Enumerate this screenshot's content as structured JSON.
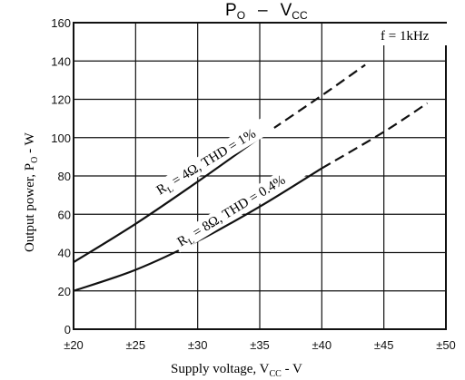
{
  "chart_data": {
    "type": "line",
    "title": {
      "main": "P",
      "main_sub": "O",
      "dash": "–",
      "vcc": "V",
      "vcc_sub": "CC"
    },
    "xlabel": {
      "pre": "Supply voltage, V",
      "sub": "CC",
      "post": " - V"
    },
    "ylabel": {
      "pre": "Output power, P",
      "sub": "O",
      "post": " - W"
    },
    "xlim": [
      20,
      50
    ],
    "ylim": [
      0,
      160
    ],
    "xticks": [
      20,
      25,
      30,
      35,
      40,
      45,
      50
    ],
    "xtick_labels": [
      "±20",
      "±25",
      "±30",
      "±35",
      "±40",
      "±45",
      "±50"
    ],
    "yticks": [
      0,
      20,
      40,
      60,
      80,
      100,
      120,
      140,
      160
    ],
    "ytick_labels": [
      "0",
      "20",
      "40",
      "60",
      "80",
      "100",
      "120",
      "140",
      "160"
    ],
    "grid": true,
    "annotation": "f = 1kHz",
    "series": [
      {
        "label_pre": "R",
        "label_sub": "L",
        "label_post": " = 4Ω, THD = 1%",
        "solid": [
          [
            20,
            35
          ],
          [
            25,
            55
          ],
          [
            30,
            77
          ],
          [
            35,
            100
          ]
        ],
        "dashed": [
          [
            35,
            100
          ],
          [
            40,
            122
          ],
          [
            43.5,
            138
          ]
        ]
      },
      {
        "label_pre": "R",
        "label_sub": "L",
        "label_post": " = 8Ω, THD = 0.4%",
        "solid": [
          [
            20,
            20
          ],
          [
            25,
            31
          ],
          [
            30,
            46
          ],
          [
            35,
            64
          ],
          [
            40,
            84
          ]
        ],
        "dashed": [
          [
            40,
            84
          ],
          [
            45,
            103
          ],
          [
            48.5,
            118
          ]
        ]
      }
    ],
    "colors": {
      "line": "#111111",
      "grid": "#111111",
      "background": "#ffffff"
    }
  }
}
